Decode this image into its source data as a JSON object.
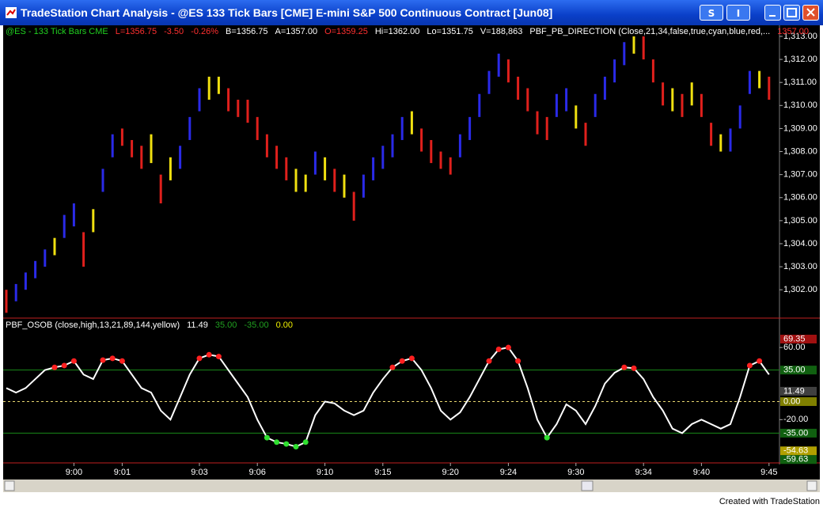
{
  "window": {
    "title": "TradeStation Chart Analysis - @ES  133 Tick Bars [CME] E-mini S&P 500 Continuous Contract [Jun08]",
    "buttons": [
      "S",
      "I"
    ]
  },
  "status_line": [
    {
      "text": "@ES - 133 Tick Bars  CME",
      "color": "#20d020"
    },
    {
      "text": "L=1356.75",
      "color": "#ff3030"
    },
    {
      "text": "-3.50",
      "color": "#ff3030"
    },
    {
      "text": "-0.26%",
      "color": "#ff3030"
    },
    {
      "text": "B=1356.75",
      "color": "#ffffff"
    },
    {
      "text": "A=1357.00",
      "color": "#ffffff"
    },
    {
      "text": "O=1359.25",
      "color": "#ff3030"
    },
    {
      "text": "Hi=1362.00",
      "color": "#ffffff"
    },
    {
      "text": "Lo=1351.75",
      "color": "#ffffff"
    },
    {
      "text": "V=188,863",
      "color": "#ffffff"
    },
    {
      "text": "PBF_PB_DIRECTION (Close,21,34,false,true,cyan,blue,red,...",
      "color": "#ffffff"
    },
    {
      "text": "1357.00",
      "color": "#ff3030"
    }
  ],
  "indicator_status": [
    {
      "text": "PBF_OSOB (close,high,13,21,89,144,yellow)",
      "color": "#ffffff"
    },
    {
      "text": "11.49",
      "color": "#ffffff"
    },
    {
      "text": "35.00",
      "color": "#20a020"
    },
    {
      "text": "-35.00",
      "color": "#20a020"
    },
    {
      "text": "0.00",
      "color": "#f0f000"
    }
  ],
  "chart_data": [
    {
      "type": "range",
      "categories": [
        null,
        null,
        null,
        null,
        null,
        null,
        null,
        "9:00",
        null,
        null,
        null,
        null,
        "9:01",
        null,
        null,
        null,
        null,
        null,
        null,
        null,
        "9:03",
        null,
        null,
        null,
        null,
        null,
        "9:06",
        null,
        null,
        null,
        null,
        null,
        null,
        "9:10",
        null,
        null,
        null,
        null,
        null,
        "9:15",
        null,
        null,
        null,
        null,
        null,
        null,
        "9:20",
        null,
        null,
        null,
        null,
        null,
        "9:24",
        null,
        null,
        null,
        null,
        null,
        null,
        "9:30",
        null,
        null,
        null,
        null,
        null,
        null,
        "9:34",
        null,
        null,
        null,
        null,
        null,
        "9:40",
        null,
        null,
        null,
        null,
        null,
        null,
        "9:45"
      ],
      "high": [
        1302.0,
        1302.25,
        1302.75,
        1303.25,
        1303.75,
        1304.25,
        1305.25,
        1305.75,
        1304.5,
        1305.5,
        1307.25,
        1308.75,
        1309.0,
        1308.5,
        1308.25,
        1308.75,
        1307.0,
        1307.75,
        1308.25,
        1309.5,
        1310.75,
        1311.25,
        1311.25,
        1310.75,
        1310.25,
        1310.25,
        1309.5,
        1308.75,
        1308.25,
        1307.75,
        1307.25,
        1307.0,
        1308.0,
        1307.75,
        1307.25,
        1307.0,
        1306.25,
        1307.0,
        1307.75,
        1308.25,
        1308.75,
        1309.5,
        1309.75,
        1309.0,
        1308.5,
        1308.0,
        1307.75,
        1308.75,
        1309.5,
        1310.5,
        1311.5,
        1312.25,
        1312.0,
        1311.25,
        1310.75,
        1309.75,
        1309.5,
        1310.5,
        1310.75,
        1310.0,
        1309.25,
        1310.5,
        1311.25,
        1312.0,
        1312.75,
        1313.0,
        1313.0,
        1312.0,
        1311.0,
        1310.75,
        1310.5,
        1311.0,
        1310.5,
        1309.25,
        1308.75,
        1309.0,
        1310.0,
        1311.5,
        1311.5,
        1311.25
      ],
      "low": [
        1301.0,
        1301.5,
        1302.0,
        1302.5,
        1303.0,
        1303.5,
        1304.25,
        1304.75,
        1303.0,
        1304.5,
        1306.25,
        1307.75,
        1308.25,
        1307.75,
        1307.25,
        1307.5,
        1305.75,
        1306.75,
        1307.25,
        1308.5,
        1309.75,
        1310.25,
        1310.5,
        1309.75,
        1309.5,
        1309.25,
        1308.5,
        1307.75,
        1307.25,
        1306.75,
        1306.25,
        1306.25,
        1307.0,
        1306.75,
        1306.25,
        1306.0,
        1305.0,
        1306.0,
        1306.75,
        1307.25,
        1307.75,
        1308.5,
        1308.75,
        1308.0,
        1307.5,
        1307.25,
        1307.0,
        1307.75,
        1308.5,
        1309.5,
        1310.5,
        1311.25,
        1311.0,
        1310.25,
        1309.75,
        1308.75,
        1308.5,
        1309.5,
        1309.75,
        1309.0,
        1308.25,
        1309.5,
        1310.25,
        1311.0,
        1311.75,
        1312.25,
        1312.0,
        1311.0,
        1310.0,
        1309.75,
        1309.5,
        1310.0,
        1309.5,
        1308.25,
        1308.0,
        1308.0,
        1309.0,
        1310.5,
        1310.75,
        1310.25
      ],
      "colors": [
        "#e0201c",
        "#2a2ae8",
        "#2a2ae8",
        "#2a2ae8",
        "#2a2ae8",
        "#f0e010",
        "#2a2ae8",
        "#2a2ae8",
        "#e0201c",
        "#f0e010",
        "#2a2ae8",
        "#2a2ae8",
        "#e0201c",
        "#e0201c",
        "#e0201c",
        "#f0e010",
        "#e0201c",
        "#f0e010",
        "#2a2ae8",
        "#2a2ae8",
        "#2a2ae8",
        "#f0e010",
        "#f0e010",
        "#e0201c",
        "#e0201c",
        "#e0201c",
        "#e0201c",
        "#e0201c",
        "#e0201c",
        "#e0201c",
        "#f0e010",
        "#f0e010",
        "#2a2ae8",
        "#f0e010",
        "#e0201c",
        "#f0e010",
        "#e0201c",
        "#2a2ae8",
        "#2a2ae8",
        "#2a2ae8",
        "#2a2ae8",
        "#2a2ae8",
        "#f0e010",
        "#e0201c",
        "#e0201c",
        "#e0201c",
        "#e0201c",
        "#2a2ae8",
        "#2a2ae8",
        "#2a2ae8",
        "#2a2ae8",
        "#2a2ae8",
        "#e0201c",
        "#e0201c",
        "#e0201c",
        "#e0201c",
        "#e0201c",
        "#2a2ae8",
        "#2a2ae8",
        "#f0e010",
        "#e0201c",
        "#2a2ae8",
        "#2a2ae8",
        "#2a2ae8",
        "#2a2ae8",
        "#f0e010",
        "#e0201c",
        "#e0201c",
        "#e0201c",
        "#f0e010",
        "#e0201c",
        "#f0e010",
        "#e0201c",
        "#e0201c",
        "#f0e010",
        "#2a2ae8",
        "#2a2ae8",
        "#2a2ae8",
        "#f0e010",
        "#e0201c"
      ],
      "ylim": [
        1300.77,
        1313.48
      ],
      "yticks": [
        {
          "value": 1302,
          "label": "1,302.00"
        },
        {
          "value": 1303,
          "label": "1,303.00"
        },
        {
          "value": 1304,
          "label": "1,304.00"
        },
        {
          "value": 1305,
          "label": "1,305.00"
        },
        {
          "value": 1306,
          "label": "1,306.00"
        },
        {
          "value": 1307,
          "label": "1,307.00"
        },
        {
          "value": 1308,
          "label": "1,308.00"
        },
        {
          "value": 1309,
          "label": "1,309.00"
        },
        {
          "value": 1310,
          "label": "1,310.00"
        },
        {
          "value": 1311,
          "label": "1,311.00"
        },
        {
          "value": 1312,
          "label": "1,312.00"
        },
        {
          "value": 1313,
          "label": "1,313.00"
        }
      ]
    },
    {
      "type": "line",
      "color": "#ffffff",
      "values": [
        15,
        10,
        15,
        25,
        35,
        38,
        40,
        45,
        30,
        25,
        46,
        48,
        45,
        30,
        15,
        10,
        -10,
        -20,
        5,
        30,
        48,
        52,
        50,
        35,
        20,
        5,
        -20,
        -40,
        -45,
        -47,
        -50,
        -45,
        -15,
        0,
        -2,
        -10,
        -15,
        -10,
        10,
        25,
        38,
        45,
        48,
        35,
        15,
        -10,
        -20,
        -12,
        5,
        25,
        45,
        58,
        60,
        45,
        15,
        -20,
        -40,
        -25,
        -3,
        -10,
        -25,
        -5,
        20,
        32,
        38,
        37,
        25,
        5,
        -10,
        -30,
        -35,
        -25,
        -20,
        -25,
        -30,
        -25,
        5,
        40,
        45,
        30
      ],
      "ylim": [
        -68,
        90
      ],
      "yticks": [
        {
          "value": 60,
          "label": "60.00"
        },
        {
          "value": -20,
          "label": "-20.00"
        }
      ],
      "levels": [
        {
          "value": 35,
          "color": "#1a8a1a",
          "dashed": false
        },
        {
          "value": 0,
          "color": "#e8d870",
          "dashed": true
        },
        {
          "value": -35,
          "color": "#1a8a1a",
          "dashed": false
        }
      ],
      "ob_color": "#ff2020",
      "os_color": "#30e030",
      "value_markers": [
        {
          "value": 69.35,
          "label": "69.35",
          "color": "#a01010"
        },
        {
          "value": 35,
          "label": "35.00",
          "color": "#106010"
        },
        {
          "value": 11.49,
          "label": "11.49",
          "color": "#404040"
        },
        {
          "value": 0,
          "label": "0.00",
          "color": "#808000"
        },
        {
          "value": -35,
          "label": "-35.00",
          "color": "#106010"
        },
        {
          "value": -54.63,
          "label": "-54.63",
          "color": "#b0a000"
        },
        {
          "value": -59.63,
          "label": "-59.63",
          "color": "#106010"
        }
      ]
    }
  ],
  "footer": "Created with TradeStation"
}
